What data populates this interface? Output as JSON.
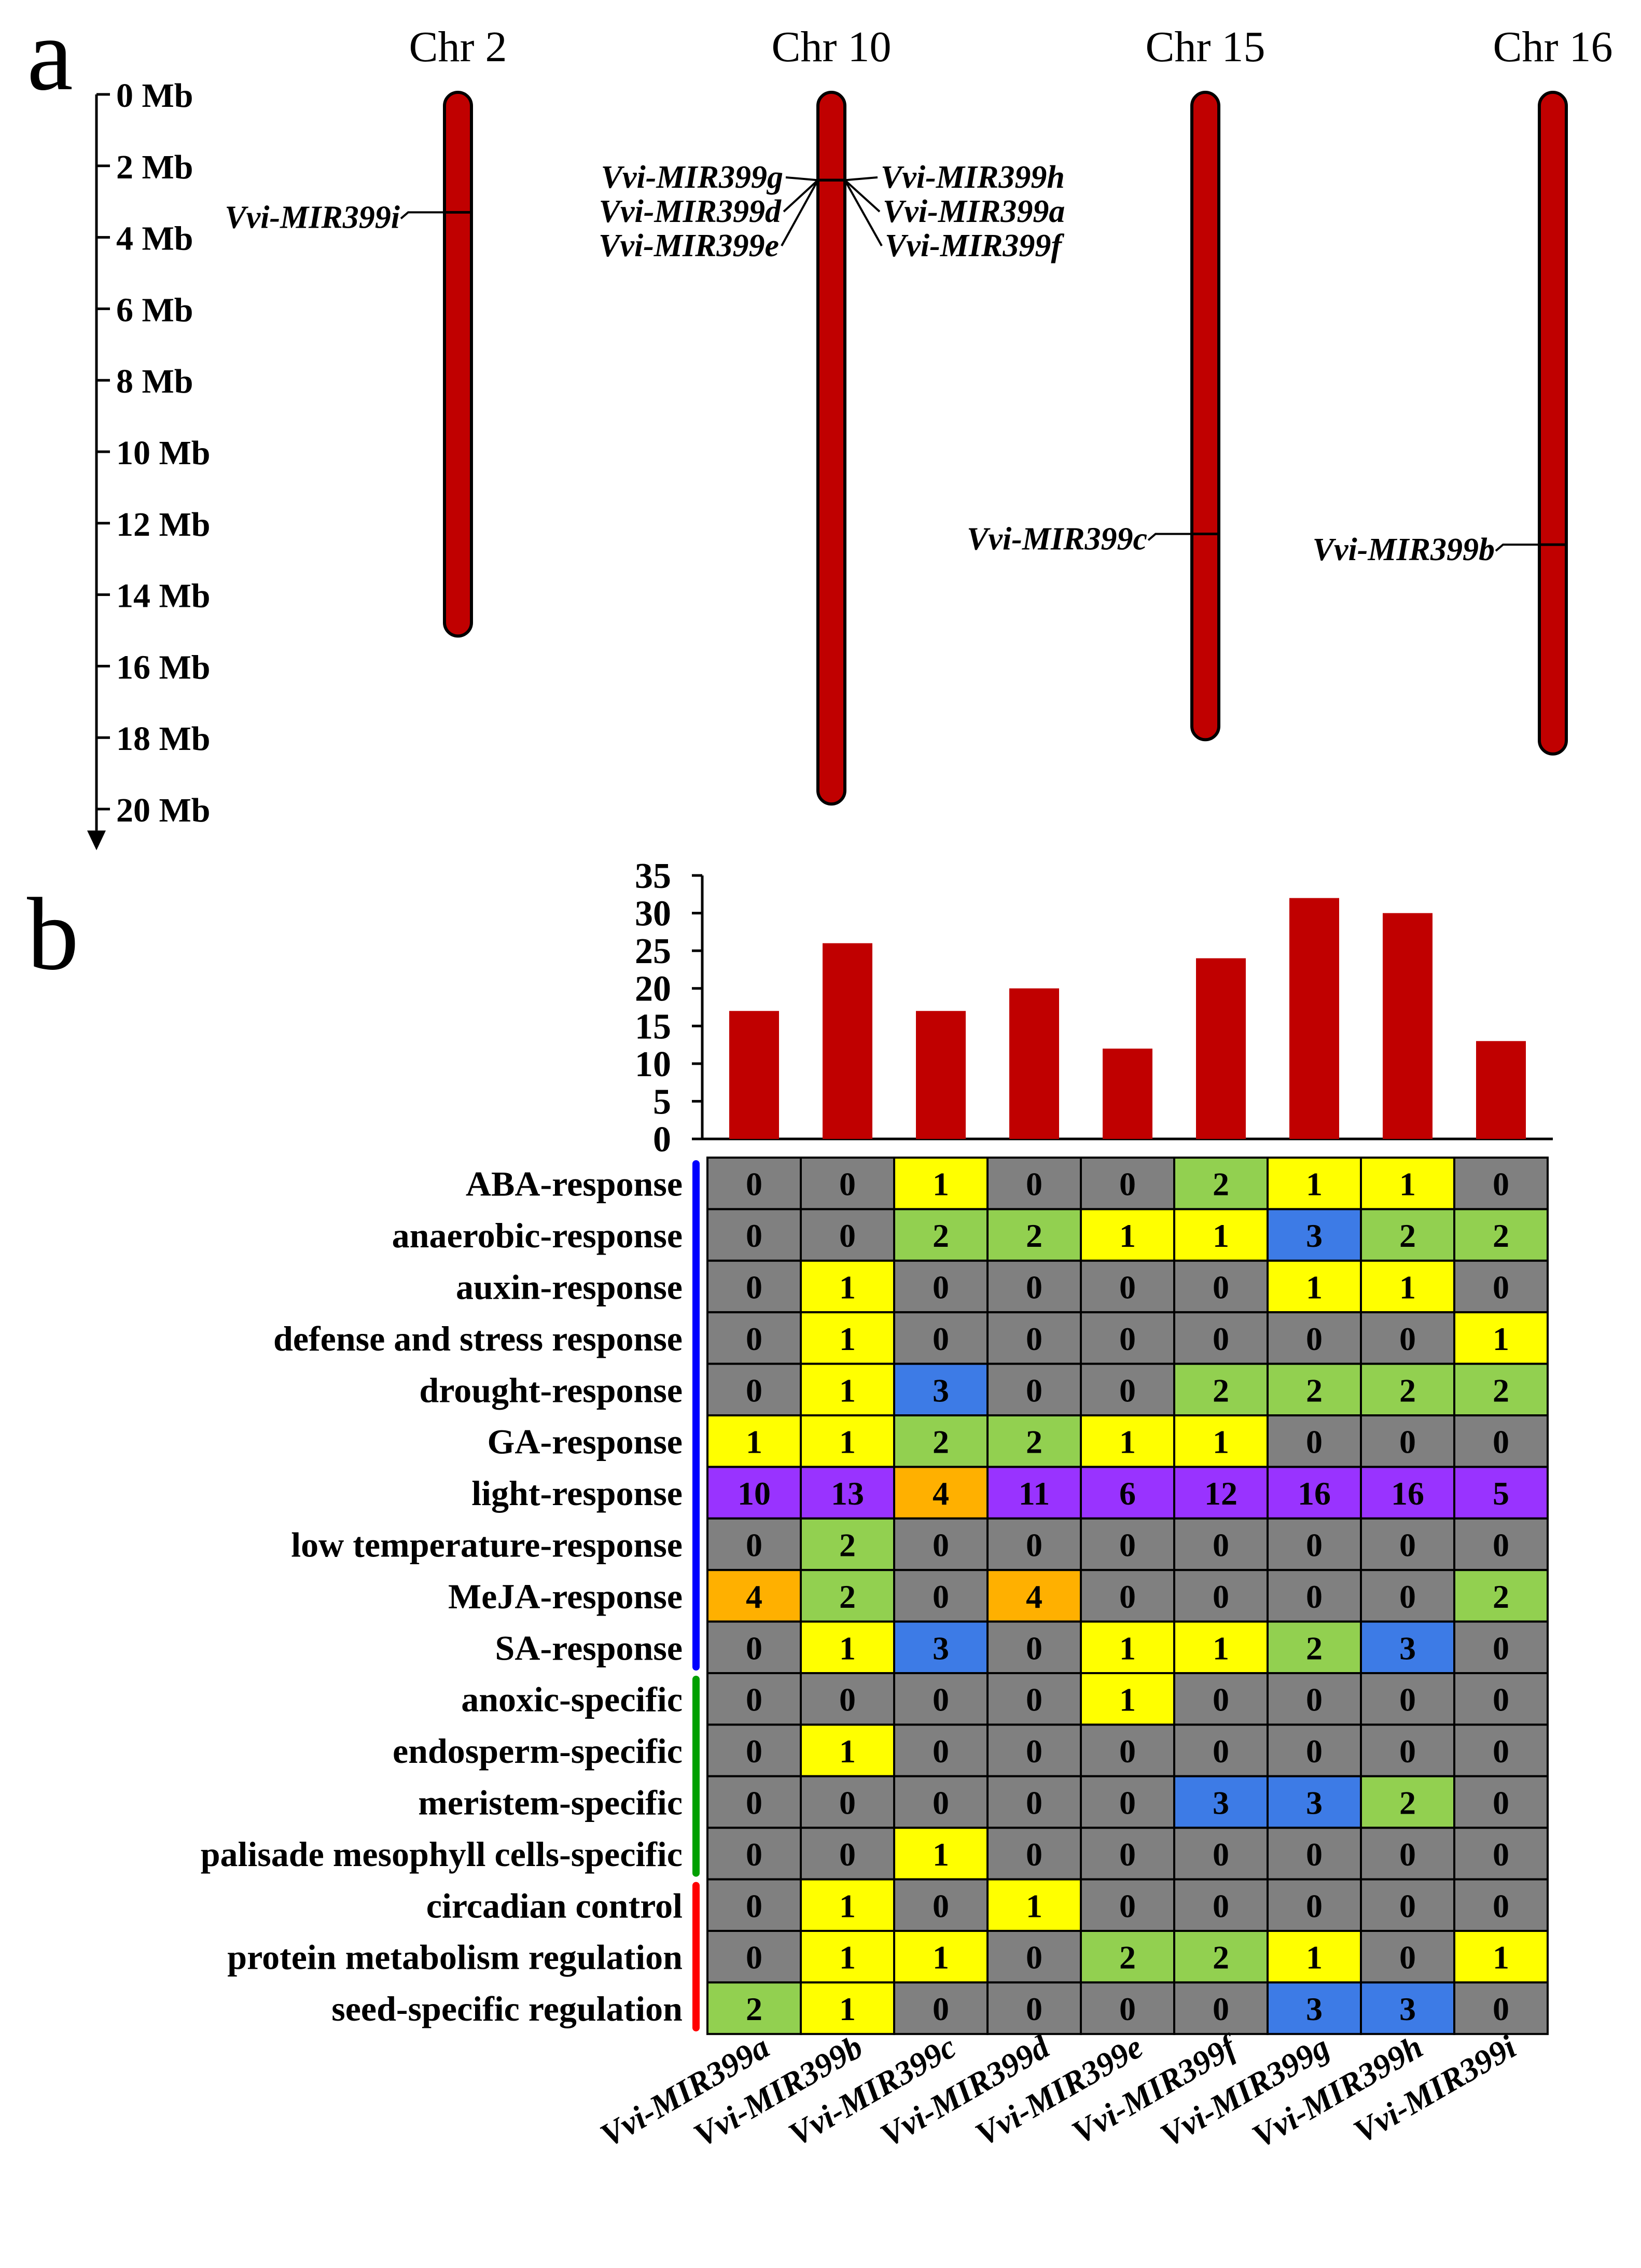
{
  "panel_a": {
    "label": "a",
    "axis_ticks": [
      "0 Mb",
      "2 Mb",
      "4 Mb",
      "6 Mb",
      "8 Mb",
      "10 Mb",
      "12 Mb",
      "14 Mb",
      "16 Mb",
      "18 Mb",
      "20 Mb"
    ],
    "axis_max_mb": 20,
    "chromosome_color": "#c00000",
    "chromosomes": [
      {
        "name": "Chr 2",
        "length_mb": 15.1
      },
      {
        "name": "Chr 10",
        "length_mb": 19.8
      },
      {
        "name": "Chr 15",
        "length_mb": 18.0
      },
      {
        "name": "Chr 16",
        "length_mb": 18.4
      }
    ],
    "genes": [
      {
        "label": "Vvi-MIR399i",
        "chromosome": "Chr 2",
        "position_mb": 3.3
      },
      {
        "label": "Vvi-MIR399g",
        "chromosome": "Chr 10",
        "position_mb": 2.4
      },
      {
        "label": "Vvi-MIR399d",
        "chromosome": "Chr 10",
        "position_mb": 2.4
      },
      {
        "label": "Vvi-MIR399e",
        "chromosome": "Chr 10",
        "position_mb": 2.4
      },
      {
        "label": "Vvi-MIR399h",
        "chromosome": "Chr 10",
        "position_mb": 2.4
      },
      {
        "label": "Vvi-MIR399a",
        "chromosome": "Chr 10",
        "position_mb": 2.4
      },
      {
        "label": "Vvi-MIR399f",
        "chromosome": "Chr 10",
        "position_mb": 2.4
      },
      {
        "label": "Vvi-MIR399c",
        "chromosome": "Chr 15",
        "position_mb": 12.3
      },
      {
        "label": "Vvi-MIR399b",
        "chromosome": "Chr 16",
        "position_mb": 12.6
      }
    ]
  },
  "panel_b": {
    "label": "b",
    "bar_color": "#c00000",
    "color_scale": {
      "0": "#808080",
      "1": "#ffff00",
      "2": "#92d050",
      "3": "#3d7be6",
      "4": "#ffb000",
      "5+": "#9933ff"
    },
    "group_colors": {
      "response": "#0000ff",
      "specific": "#00a000",
      "regulation": "#ff0000"
    }
  },
  "chart_data": [
    {
      "type": "bar",
      "title": "",
      "xlabel": "",
      "ylabel": "",
      "ylim": [
        0,
        35
      ],
      "yticks": [
        "0",
        "5",
        "10",
        "15",
        "20",
        "25",
        "30",
        "35"
      ],
      "categories": [
        "Vvi-MIR399a",
        "Vvi-MIR399b",
        "Vvi-MIR399c",
        "Vvi-MIR399d",
        "Vvi-MIR399e",
        "Vvi-MIR399f",
        "Vvi-MIR399g",
        "Vvi-MIR399h",
        "Vvi-MIR399i"
      ],
      "values": [
        17,
        26,
        17,
        20,
        12,
        24,
        32,
        30,
        13
      ]
    },
    {
      "type": "heatmap",
      "columns": [
        "Vvi-MIR399a",
        "Vvi-MIR399b",
        "Vvi-MIR399c",
        "Vvi-MIR399d",
        "Vvi-MIR399e",
        "Vvi-MIR399f",
        "Vvi-MIR399g",
        "Vvi-MIR399h",
        "Vvi-MIR399i"
      ],
      "rows": [
        {
          "label": "ABA-response",
          "group": "response",
          "values": [
            0,
            0,
            1,
            0,
            0,
            2,
            1,
            1,
            0
          ]
        },
        {
          "label": "anaerobic-response",
          "group": "response",
          "values": [
            0,
            0,
            2,
            2,
            1,
            1,
            3,
            2,
            2
          ]
        },
        {
          "label": "auxin-response",
          "group": "response",
          "values": [
            0,
            1,
            0,
            0,
            0,
            0,
            1,
            1,
            0
          ]
        },
        {
          "label": "defense and stress response",
          "group": "response",
          "values": [
            0,
            1,
            0,
            0,
            0,
            0,
            0,
            0,
            1
          ]
        },
        {
          "label": "drought-response",
          "group": "response",
          "values": [
            0,
            1,
            3,
            0,
            0,
            2,
            2,
            2,
            2
          ]
        },
        {
          "label": "GA-response",
          "group": "response",
          "values": [
            1,
            1,
            2,
            2,
            1,
            1,
            0,
            0,
            0
          ]
        },
        {
          "label": "light-response",
          "group": "response",
          "values": [
            10,
            13,
            4,
            11,
            6,
            12,
            16,
            16,
            5
          ]
        },
        {
          "label": "low temperature-response",
          "group": "response",
          "values": [
            0,
            2,
            0,
            0,
            0,
            0,
            0,
            0,
            0
          ]
        },
        {
          "label": "MeJA-response",
          "group": "response",
          "values": [
            4,
            2,
            0,
            4,
            0,
            0,
            0,
            0,
            2
          ]
        },
        {
          "label": "SA-response",
          "group": "response",
          "values": [
            0,
            1,
            3,
            0,
            1,
            1,
            2,
            3,
            0
          ]
        },
        {
          "label": "anoxic-specific",
          "group": "specific",
          "values": [
            0,
            0,
            0,
            0,
            1,
            0,
            0,
            0,
            0
          ]
        },
        {
          "label": "endosperm-specific",
          "group": "specific",
          "values": [
            0,
            1,
            0,
            0,
            0,
            0,
            0,
            0,
            0
          ]
        },
        {
          "label": "meristem-specific",
          "group": "specific",
          "values": [
            0,
            0,
            0,
            0,
            0,
            3,
            3,
            2,
            0
          ]
        },
        {
          "label": "palisade mesophyll cells-specific",
          "group": "specific",
          "values": [
            0,
            0,
            1,
            0,
            0,
            0,
            0,
            0,
            0
          ]
        },
        {
          "label": "circadian control",
          "group": "regulation",
          "values": [
            0,
            1,
            0,
            1,
            0,
            0,
            0,
            0,
            0
          ]
        },
        {
          "label": "protein metabolism regulation",
          "group": "regulation",
          "values": [
            0,
            1,
            1,
            0,
            2,
            2,
            1,
            0,
            1
          ]
        },
        {
          "label": "seed-specific regulation",
          "group": "regulation",
          "values": [
            2,
            1,
            0,
            0,
            0,
            0,
            3,
            3,
            0
          ]
        }
      ]
    }
  ]
}
